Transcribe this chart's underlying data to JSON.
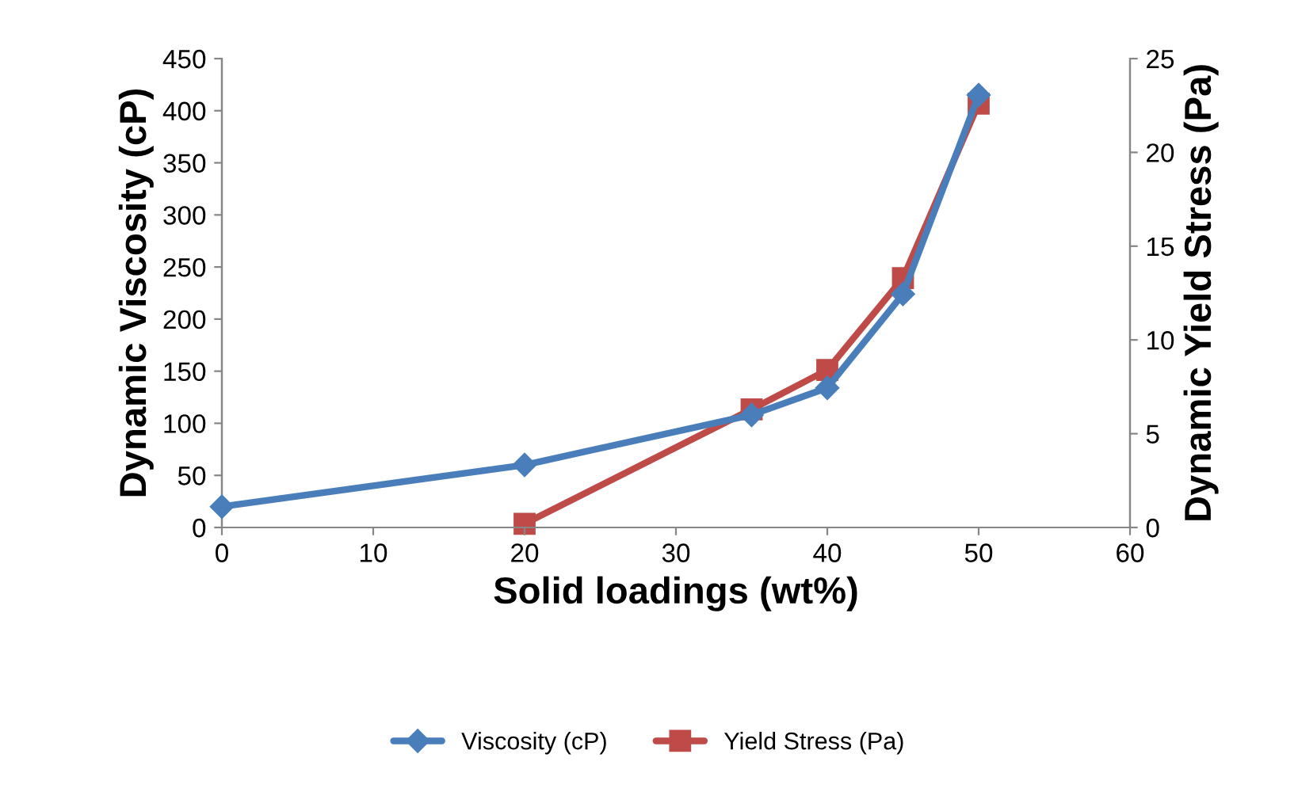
{
  "chart_data": {
    "type": "line",
    "xlabel": "Solid loadings (wt%)",
    "ylabel": "Dynamic Viscosity (cP)",
    "y2label": "Dynamic Yield Stress (Pa)",
    "xlim": [
      0,
      60
    ],
    "xticks": [
      0,
      10,
      20,
      30,
      40,
      50,
      60
    ],
    "ylim": [
      0,
      450
    ],
    "yticks": [
      0,
      50,
      100,
      150,
      200,
      250,
      300,
      350,
      400,
      450
    ],
    "y2lim": [
      0,
      25
    ],
    "y2ticks": [
      0,
      5,
      10,
      15,
      20,
      25
    ],
    "grid": false,
    "legend": "bottom",
    "line_style": "solid",
    "series": [
      {
        "name": "Viscosity (cP)",
        "color": "#4a7ebb",
        "marker": "diamond",
        "x": [
          0,
          20,
          35,
          40,
          45,
          50
        ],
        "values": [
          20,
          60,
          108,
          134,
          224,
          415
        ]
      },
      {
        "name": "Yield Stress (Pa)",
        "color": "#be4b48",
        "marker": "square",
        "axis": "y2",
        "x": [
          20,
          35,
          40,
          45,
          50
        ],
        "values": [
          0.2,
          6.3,
          8.4,
          13.3,
          22.6
        ]
      }
    ]
  }
}
